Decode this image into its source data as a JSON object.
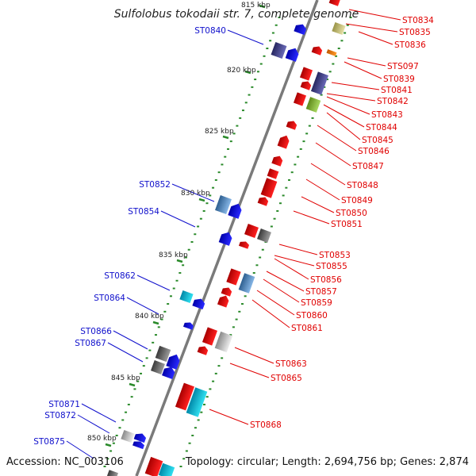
{
  "title": "Sulfolobus tokodaii str. 7, complete genome",
  "footer": {
    "accession": "Accession: NC_003106",
    "topology": "Topology: circular; Length: 2,694,756 bp; Genes: 2,874"
  },
  "colors": {
    "backbone": "#7a7a7a",
    "tick": "#2a8a2a",
    "red_label": "#e00000",
    "blue_label": "#1010cc"
  },
  "ruler": [
    "815 kbp",
    "820 kbp",
    "825 kbp",
    "830 kbp",
    "835 kbp",
    "840 kbp",
    "845 kbp",
    "850 kbp"
  ],
  "labels_right": [
    "ST0834",
    "ST0835",
    "ST0836",
    "STS097",
    "ST0839",
    "ST0841",
    "ST0842",
    "ST0843",
    "ST0844",
    "ST0845",
    "ST0846",
    "ST0847",
    "ST0848",
    "ST0849",
    "ST0850",
    "ST0851",
    "ST0853",
    "ST0855",
    "ST0856",
    "ST0857",
    "ST0859",
    "ST0860",
    "ST0861",
    "ST0863",
    "ST0865",
    "ST0868"
  ],
  "labels_left": [
    "ST0840",
    "ST0852",
    "ST0854",
    "ST0862",
    "ST0864",
    "ST0866",
    "ST0867",
    "ST0871",
    "ST0872",
    "ST0875"
  ]
}
